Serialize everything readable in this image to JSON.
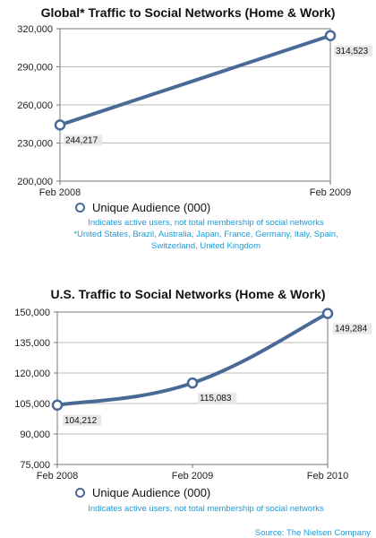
{
  "colors": {
    "line": "#4a6a96",
    "axis": "#777777",
    "grid": "#bbbbbb",
    "note": "#1e9ad6"
  },
  "chart_data": [
    {
      "type": "line",
      "title": "Global* Traffic to Social Networks (Home & Work)",
      "categories": [
        "Feb 2008",
        "Feb 2009"
      ],
      "series": [
        {
          "name": "Unique Audience (000)",
          "values": [
            244217,
            314523
          ]
        }
      ],
      "value_labels": [
        "244,217",
        "314,523"
      ],
      "ylim": [
        200000,
        320000
      ],
      "yticks": [
        "320,000",
        "290,000",
        "260,000",
        "230,000",
        "200,000"
      ],
      "grid": true,
      "legend": "bottom",
      "notes": [
        "Indicates active users, not total membership of social networks",
        "*United States, Brazil, Australia, Japan, France, Germany, Italy, Spain,",
        "Switzerland, United Kingdom"
      ]
    },
    {
      "type": "line",
      "title": "U.S. Traffic to Social Networks (Home & Work)",
      "categories": [
        "Feb 2008",
        "Feb 2009",
        "Feb 2010"
      ],
      "series": [
        {
          "name": "Unique Audience (000)",
          "values": [
            104212,
            115083,
            149284
          ]
        }
      ],
      "value_labels": [
        "104,212",
        "115,083",
        "149,284"
      ],
      "ylim": [
        75000,
        150000
      ],
      "yticks": [
        "150,000",
        "135,000",
        "120,000",
        "105,000",
        "90,000",
        "75,000"
      ],
      "grid": true,
      "legend": "bottom",
      "notes": [
        "Indicates active users, not total membership of social networks"
      ]
    }
  ],
  "source": "Source: The Nielsen Company"
}
